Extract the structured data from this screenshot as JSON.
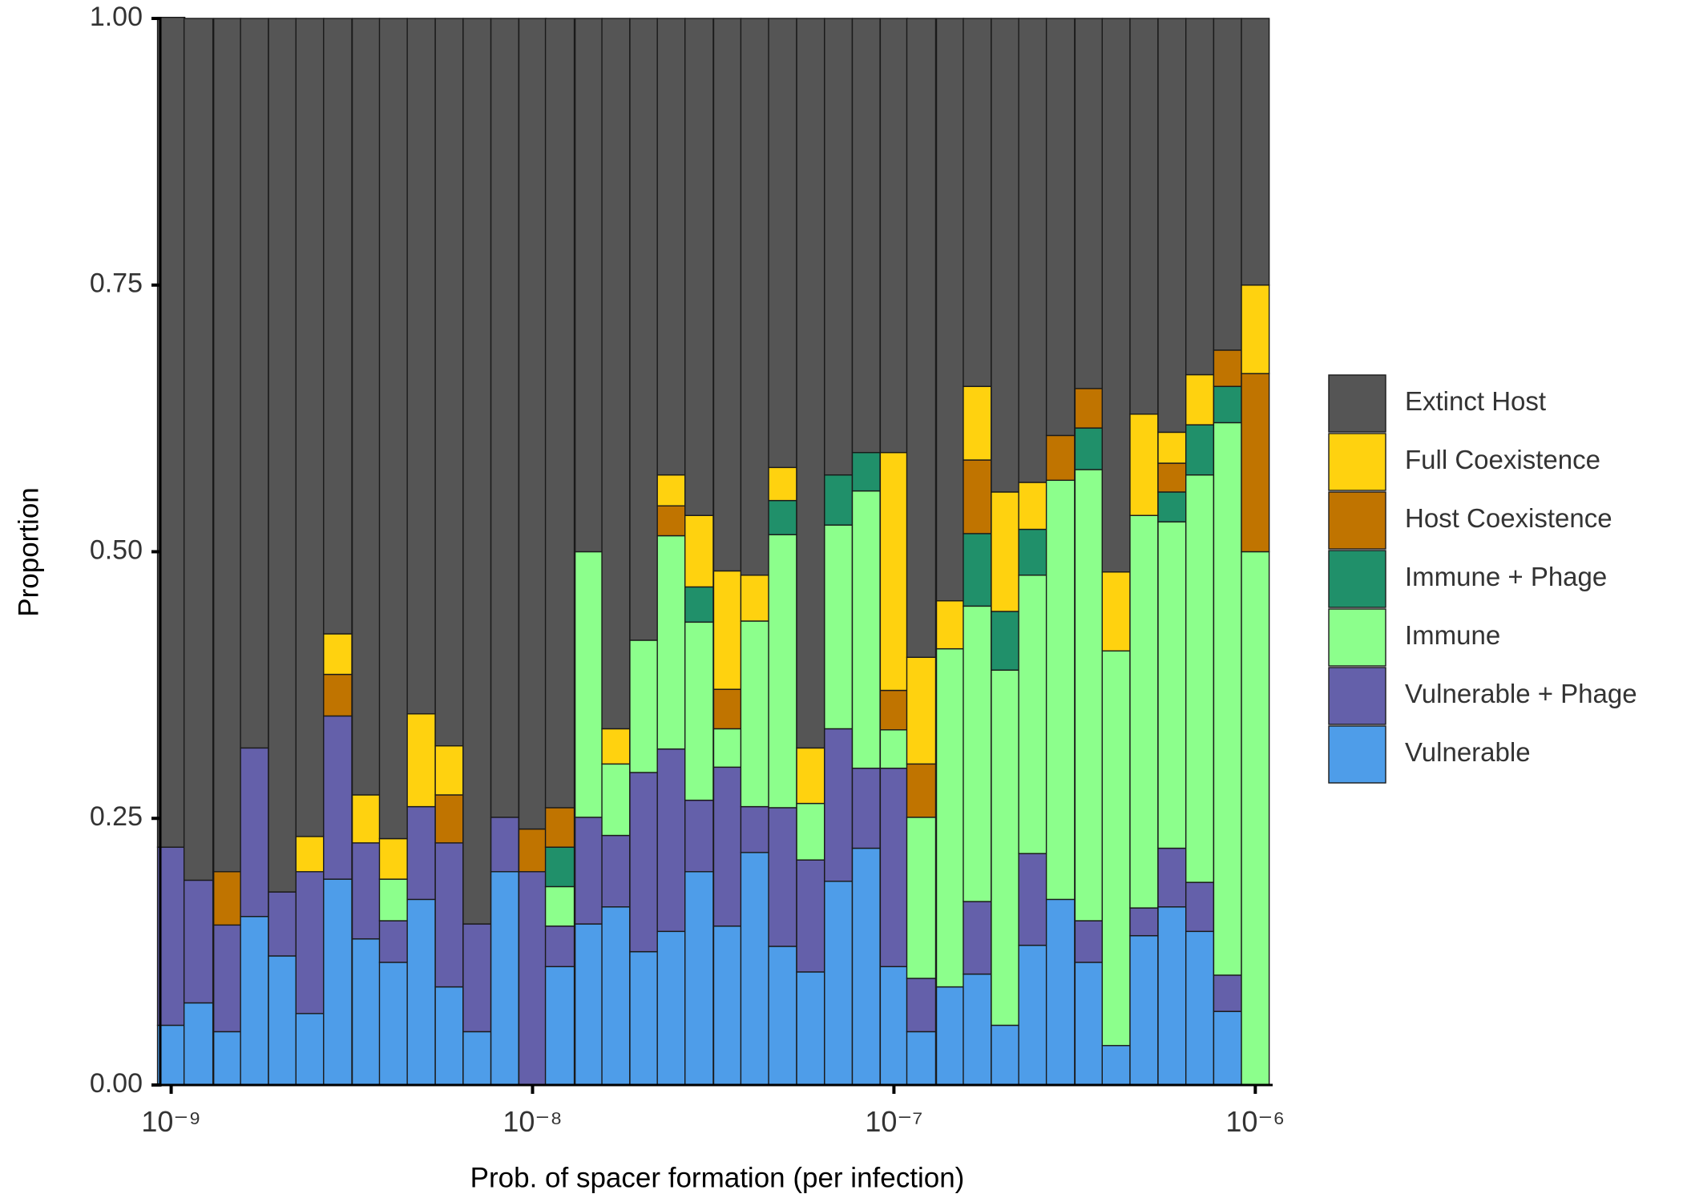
{
  "chart_data": {
    "type": "stacked_bar",
    "x_label": "Prob. of spacer formation (per infection)",
    "y_label": "Proportion",
    "xscale": "log",
    "x": [
      1e-09,
      1.19e-09,
      1.43e-09,
      1.7e-09,
      2.03e-09,
      2.42e-09,
      2.89e-09,
      3.46e-09,
      4.12e-09,
      4.92e-09,
      5.88e-09,
      7.02e-09,
      8.38e-09,
      1e-08,
      1.19e-08,
      1.43e-08,
      1.7e-08,
      2.03e-08,
      2.42e-08,
      2.89e-08,
      3.46e-08,
      4.12e-08,
      4.92e-08,
      5.88e-08,
      7.02e-08,
      8.38e-08,
      1e-07,
      1.19e-07,
      1.43e-07,
      1.7e-07,
      2.03e-07,
      2.42e-07,
      2.89e-07,
      3.46e-07,
      4.12e-07,
      4.92e-07,
      5.88e-07,
      7.02e-07,
      8.38e-07,
      1e-06
    ],
    "xlim": [
      9.33e-10,
      1.117e-06
    ],
    "xticks": [
      {
        "value": 1e-09,
        "label": "10⁻⁹"
      },
      {
        "value": 1e-08,
        "label": "10⁻⁸"
      },
      {
        "value": 1e-07,
        "label": "10⁻⁷"
      },
      {
        "value": 1e-06,
        "label": "10⁻⁶"
      }
    ],
    "ylim": [
      0,
      1
    ],
    "yticks": [
      {
        "value": 0,
        "label": "0.00"
      },
      {
        "value": 0.25,
        "label": "0.25"
      },
      {
        "value": 0.5,
        "label": "0.50"
      },
      {
        "value": 0.75,
        "label": "0.75"
      },
      {
        "value": 1,
        "label": "1.00"
      }
    ],
    "legend": "right",
    "series": [
      {
        "name": "Vulnerable",
        "color": "#4e9de9",
        "values": [
          0.056,
          0.077,
          0.05,
          0.158,
          0.121,
          0.067,
          0.193,
          0.137,
          0.115,
          0.174,
          0.092,
          0.05,
          0.2,
          0,
          0.111,
          0.151,
          0.167,
          0.125,
          0.144,
          0.2,
          0.149,
          0.218,
          0.13,
          0.106,
          0.191,
          0.222,
          0.111,
          0.05,
          0.092,
          0.104,
          0.056,
          0.131,
          0.174,
          0.115,
          0.037,
          0.14,
          0.167,
          0.144,
          0.069,
          0
        ]
      },
      {
        "name": "Vulnerable + Phage",
        "color": "#6460aa",
        "values": [
          0.167,
          0.115,
          0.1,
          0.158,
          0.06,
          0.133,
          0.153,
          0.09,
          0.039,
          0.087,
          0.135,
          0.101,
          0.051,
          0.2,
          0.038,
          0.1,
          0.067,
          0.168,
          0.171,
          0.067,
          0.149,
          0.043,
          0.13,
          0.105,
          0.143,
          0.075,
          0.186,
          0.05,
          0,
          0.068,
          0,
          0.086,
          0,
          0.039,
          0,
          0.026,
          0.055,
          0.046,
          0.034,
          0
        ]
      },
      {
        "name": "Immune",
        "color": "#8cff8c",
        "values": [
          0,
          0,
          0,
          0,
          0,
          0,
          0,
          0,
          0.039,
          0,
          0,
          0,
          0,
          0,
          0.037,
          0.249,
          0.067,
          0.124,
          0.2,
          0.167,
          0.036,
          0.174,
          0.256,
          0.053,
          0.191,
          0.26,
          0.036,
          0.151,
          0.317,
          0.277,
          0.333,
          0.261,
          0.393,
          0.423,
          0.37,
          0.368,
          0.306,
          0.382,
          0.518,
          0.5
        ]
      },
      {
        "name": "Immune + Phage",
        "color": "#20906a",
        "values": [
          0,
          0,
          0,
          0,
          0,
          0,
          0,
          0,
          0,
          0,
          0,
          0,
          0,
          0,
          0.037,
          0,
          0,
          0,
          0,
          0.033,
          0,
          0,
          0.032,
          0,
          0.047,
          0.036,
          0,
          0,
          0,
          0.068,
          0.055,
          0.043,
          0,
          0.039,
          0,
          0,
          0.028,
          0.047,
          0.034,
          0
        ]
      },
      {
        "name": "Host Coexistence",
        "color": "#c07400",
        "values": [
          0,
          0,
          0.05,
          0,
          0,
          0,
          0.039,
          0,
          0,
          0,
          0.045,
          0,
          0,
          0.04,
          0.037,
          0,
          0,
          0,
          0.028,
          0,
          0.037,
          0,
          0,
          0,
          0,
          0,
          0.037,
          0.05,
          0,
          0.069,
          0,
          0,
          0.042,
          0.037,
          0,
          0,
          0.027,
          0,
          0.034,
          0.167
        ]
      },
      {
        "name": "Full Coexistence",
        "color": "#ffd20f",
        "values": [
          0,
          0,
          0,
          0,
          0,
          0.033,
          0.038,
          0.045,
          0.038,
          0.087,
          0.046,
          0,
          0,
          0,
          0,
          0,
          0.033,
          0,
          0.029,
          0.067,
          0.111,
          0.043,
          0.031,
          0.052,
          0,
          0,
          0.223,
          0.1,
          0.045,
          0.069,
          0.112,
          0.044,
          0,
          0,
          0.074,
          0.095,
          0.029,
          0.047,
          0,
          0.083
        ]
      },
      {
        "name": "Extinct Host",
        "color": "#555555",
        "values": [
          0.778,
          0.808,
          0.8,
          0.684,
          0.819,
          0.767,
          0.577,
          0.728,
          0.769,
          0.652,
          0.682,
          0.849,
          0.749,
          0.76,
          0.74,
          0.5,
          0.666,
          0.583,
          0.428,
          0.466,
          0.518,
          0.522,
          0.421,
          0.684,
          0.428,
          0.407,
          0.407,
          0.599,
          0.546,
          0.345,
          0.444,
          0.435,
          0.391,
          0.347,
          0.519,
          0.371,
          0.388,
          0.334,
          0.311,
          0.25
        ]
      }
    ]
  }
}
